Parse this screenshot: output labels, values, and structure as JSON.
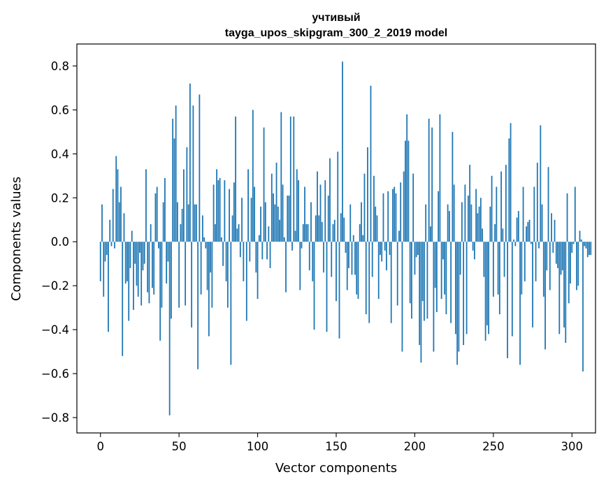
{
  "chart_data": {
    "type": "bar",
    "title_line1": "учтивый",
    "title_line2": "tayga_upos_skipgram_300_2_2019 model",
    "xlabel": "Vector components",
    "ylabel": "Components values",
    "xlim": [
      -15,
      315
    ],
    "ylim": [
      -0.87,
      0.9
    ],
    "xticks": [
      0,
      50,
      100,
      150,
      200,
      250,
      300
    ],
    "xtick_labels": [
      "0",
      "50",
      "100",
      "150",
      "200",
      "250",
      "300"
    ],
    "yticks": [
      -0.8,
      -0.6,
      -0.4,
      -0.2,
      0.0,
      0.2,
      0.4,
      0.6,
      0.8
    ],
    "ytick_labels": [
      "−0.8",
      "−0.6",
      "−0.4",
      "−0.2",
      "0.0",
      "0.2",
      "0.4",
      "0.6",
      "0.8"
    ],
    "bar_color": "#1f77b4",
    "values": [
      -0.18,
      0.17,
      -0.25,
      -0.09,
      -0.06,
      -0.41,
      0.1,
      -0.02,
      0.24,
      -0.03,
      0.39,
      0.33,
      0.18,
      0.25,
      -0.52,
      0.13,
      -0.19,
      -0.18,
      -0.36,
      -0.12,
      0.05,
      -0.31,
      -0.1,
      -0.2,
      -0.25,
      -0.05,
      -0.29,
      -0.13,
      -0.1,
      0.33,
      -0.23,
      -0.28,
      0.08,
      -0.21,
      -0.24,
      0.22,
      0.25,
      -0.03,
      -0.45,
      -0.3,
      0.18,
      0.29,
      -0.19,
      -0.09,
      -0.79,
      -0.35,
      0.56,
      0.47,
      0.62,
      0.18,
      -0.3,
      0.08,
      0.15,
      0.33,
      -0.29,
      0.43,
      0.17,
      0.72,
      -0.39,
      0.62,
      0.17,
      0.17,
      -0.58,
      0.67,
      -0.24,
      0.12,
      0.02,
      -0.03,
      -0.22,
      -0.43,
      -0.14,
      -0.3,
      0.26,
      0.08,
      0.33,
      0.28,
      0.29,
      0.02,
      -0.11,
      0.28,
      -0.18,
      -0.3,
      0.24,
      -0.56,
      0.12,
      0.27,
      0.57,
      0.06,
      0.08,
      -0.07,
      0.2,
      -0.18,
      0.0,
      -0.36,
      0.33,
      -0.09,
      0.2,
      0.6,
      0.25,
      -0.14,
      -0.26,
      0.03,
      0.16,
      -0.08,
      0.52,
      0.18,
      -0.08,
      0.07,
      -0.12,
      0.31,
      0.22,
      0.17,
      0.36,
      0.16,
      0.1,
      0.59,
      0.26,
      0.02,
      -0.23,
      0.21,
      0.21,
      0.57,
      -0.04,
      0.57,
      0.05,
      0.33,
      0.28,
      -0.22,
      -0.03,
      0.08,
      0.25,
      0.08,
      0.08,
      -0.13,
      0.18,
      -0.18,
      -0.4,
      0.12,
      0.32,
      0.12,
      0.26,
      0.09,
      -0.14,
      0.28,
      -0.41,
      0.21,
      0.38,
      -0.16,
      0.08,
      0.1,
      -0.27,
      0.41,
      -0.44,
      0.13,
      0.82,
      0.11,
      -0.05,
      -0.22,
      -0.12,
      0.17,
      -0.15,
      0.03,
      -0.15,
      -0.24,
      -0.26,
      0.08,
      0.18,
      0.03,
      0.31,
      -0.33,
      0.43,
      -0.37,
      0.71,
      -0.16,
      0.3,
      0.16,
      0.12,
      -0.26,
      -0.06,
      -0.09,
      0.22,
      -0.04,
      -0.13,
      0.23,
      -0.06,
      -0.37,
      0.24,
      0.25,
      0.22,
      -0.29,
      0.05,
      0.27,
      -0.5,
      0.32,
      0.46,
      0.58,
      0.46,
      -0.28,
      -0.35,
      0.31,
      -0.15,
      -0.07,
      -0.06,
      -0.47,
      -0.55,
      -0.27,
      -0.36,
      0.17,
      -0.35,
      0.56,
      0.07,
      0.52,
      -0.5,
      -0.21,
      -0.32,
      0.23,
      0.58,
      -0.26,
      -0.08,
      -0.24,
      -0.33,
      0.17,
      0.14,
      -0.37,
      0.5,
      0.26,
      -0.42,
      -0.56,
      -0.5,
      -0.15,
      0.18,
      -0.47,
      0.26,
      -0.42,
      0.21,
      0.35,
      0.17,
      -0.04,
      -0.08,
      0.24,
      0.13,
      0.16,
      0.2,
      0.06,
      -0.16,
      -0.45,
      -0.38,
      -0.42,
      0.16,
      0.3,
      -0.25,
      0.08,
      0.25,
      -0.24,
      -0.33,
      0.32,
      0.06,
      -0.16,
      0.35,
      -0.53,
      0.47,
      0.54,
      -0.43,
      0.01,
      -0.02,
      0.11,
      0.14,
      -0.56,
      -0.24,
      0.25,
      -0.18,
      0.07,
      0.09,
      0.1,
      -0.01,
      -0.39,
      0.25,
      -0.18,
      0.36,
      -0.03,
      0.53,
      0.17,
      -0.25,
      -0.49,
      -0.13,
      0.34,
      -0.22,
      0.13,
      -0.05,
      0.1,
      -0.1,
      -0.12,
      -0.42,
      -0.15,
      -0.13,
      -0.39,
      -0.46,
      0.22,
      -0.28,
      -0.19,
      -0.05,
      -0.01,
      0.25,
      -0.22,
      -0.2,
      0.05,
      0.01,
      -0.59,
      -0.02,
      -0.03,
      -0.07,
      -0.06,
      -0.06
    ]
  }
}
